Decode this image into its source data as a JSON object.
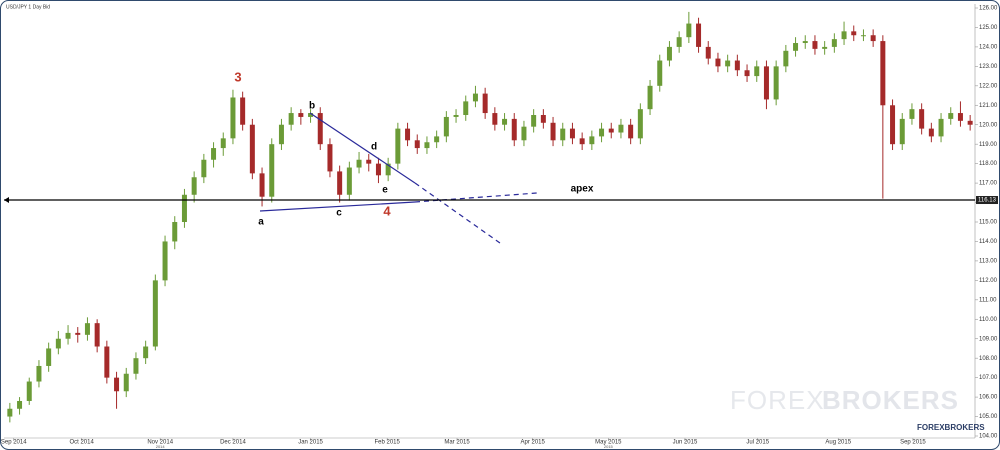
{
  "chart_data": {
    "type": "candlestick",
    "title": "USD/JPY  1 Day Bid",
    "up_color": "#6b9b37",
    "down_color": "#a52a2a",
    "ylim": [
      104,
      126
    ],
    "yticks": [
      {
        "value": 104,
        "label": "104.00"
      },
      {
        "value": 105,
        "label": "105.00"
      },
      {
        "value": 106,
        "label": "106.00"
      },
      {
        "value": 107,
        "label": "107.00"
      },
      {
        "value": 108,
        "label": "108.00"
      },
      {
        "value": 109,
        "label": "109.00"
      },
      {
        "value": 110,
        "label": "110.00"
      },
      {
        "value": 111,
        "label": "111.00"
      },
      {
        "value": 112,
        "label": "112.00"
      },
      {
        "value": 113,
        "label": "113.00"
      },
      {
        "value": 114,
        "label": "114.00"
      },
      {
        "value": 115,
        "label": "115.00"
      },
      {
        "value": 116,
        "label": "116.00"
      },
      {
        "value": 117,
        "label": "117.00"
      },
      {
        "value": 118,
        "label": "118.00"
      },
      {
        "value": 119,
        "label": "119.00"
      },
      {
        "value": 120,
        "label": "120.00"
      },
      {
        "value": 121,
        "label": "121.00"
      },
      {
        "value": 122,
        "label": "122.00"
      },
      {
        "value": 123,
        "label": "123.00"
      },
      {
        "value": 124,
        "label": "124.00"
      },
      {
        "value": 125,
        "label": "125.00"
      },
      {
        "value": 126,
        "label": "126.00"
      }
    ],
    "xticks": [
      {
        "value": 0.4,
        "label": "Sep 2014"
      },
      {
        "value": 7.4,
        "label": "Oct 2014"
      },
      {
        "value": 15.5,
        "label": "Nov 2014"
      },
      {
        "value": 23.0,
        "label": "Dec 2014"
      },
      {
        "value": 31.0,
        "label": "Jan 2015"
      },
      {
        "value": 38.9,
        "label": "Feb 2015"
      },
      {
        "value": 46.1,
        "label": "Mar 2015"
      },
      {
        "value": 53.9,
        "label": "Apr 2015"
      },
      {
        "value": 61.7,
        "label": "May 2015"
      },
      {
        "value": 69.6,
        "label": "Jun 2015"
      },
      {
        "value": 77.1,
        "label": "Jul 2015"
      },
      {
        "value": 85.4,
        "label": "Aug 2015"
      },
      {
        "value": 93.1,
        "label": "Sep 2015"
      }
    ],
    "year_labels": [
      {
        "value": 15.5,
        "label": "2014"
      },
      {
        "value": 61.7,
        "label": "2015"
      }
    ],
    "price_line": 116.13,
    "annotations": [
      "3",
      "4",
      "a",
      "b",
      "c",
      "d",
      "e",
      "apex"
    ],
    "watermark": {
      "main_left": "FOREX",
      "main_right": "BROKERS",
      "small": "FOREXBROKERS"
    },
    "candles": [
      [
        105.0,
        105.7,
        104.7,
        105.4
      ],
      [
        105.4,
        106.0,
        105.1,
        105.8
      ],
      [
        105.8,
        107.0,
        105.6,
        106.8
      ],
      [
        106.8,
        107.9,
        106.5,
        107.6
      ],
      [
        107.6,
        108.8,
        107.3,
        108.5
      ],
      [
        108.5,
        109.4,
        108.2,
        109.0
      ],
      [
        109.0,
        109.7,
        108.7,
        109.3
      ],
      [
        109.3,
        109.6,
        108.8,
        109.2
      ],
      [
        109.2,
        110.1,
        108.9,
        109.8
      ],
      [
        109.8,
        110.0,
        108.3,
        108.6
      ],
      [
        108.6,
        108.9,
        106.7,
        107.0
      ],
      [
        107.0,
        107.3,
        105.4,
        106.3
      ],
      [
        106.3,
        107.5,
        106.0,
        107.2
      ],
      [
        107.2,
        108.3,
        106.9,
        108.0
      ],
      [
        108.0,
        108.9,
        107.7,
        108.6
      ],
      [
        108.6,
        112.3,
        108.4,
        112.0
      ],
      [
        112.0,
        114.3,
        111.7,
        114.0
      ],
      [
        114.0,
        115.3,
        113.6,
        115.0
      ],
      [
        115.0,
        116.7,
        114.7,
        116.4
      ],
      [
        116.4,
        117.6,
        116.0,
        117.3
      ],
      [
        117.3,
        118.5,
        117.0,
        118.2
      ],
      [
        118.2,
        119.1,
        117.8,
        118.8
      ],
      [
        118.8,
        119.6,
        118.4,
        119.3
      ],
      [
        119.3,
        121.8,
        119.0,
        121.4
      ],
      [
        121.4,
        121.7,
        119.7,
        120.0
      ],
      [
        120.0,
        120.3,
        117.2,
        117.5
      ],
      [
        117.5,
        117.8,
        115.8,
        116.3
      ],
      [
        116.3,
        119.3,
        116.0,
        119.0
      ],
      [
        119.0,
        120.3,
        118.7,
        120.0
      ],
      [
        120.0,
        120.9,
        119.7,
        120.6
      ],
      [
        120.6,
        120.8,
        120.0,
        120.4
      ],
      [
        120.4,
        120.8,
        120.1,
        120.6
      ],
      [
        120.6,
        120.9,
        118.7,
        119.0
      ],
      [
        119.0,
        119.3,
        117.3,
        117.6
      ],
      [
        117.6,
        117.9,
        116.0,
        116.4
      ],
      [
        116.4,
        118.1,
        116.1,
        117.8
      ],
      [
        117.8,
        118.6,
        117.5,
        118.2
      ],
      [
        118.2,
        118.5,
        117.6,
        118.0
      ],
      [
        118.0,
        118.3,
        117.0,
        117.4
      ],
      [
        117.4,
        118.3,
        117.1,
        118.0
      ],
      [
        118.0,
        120.1,
        117.7,
        119.8
      ],
      [
        119.8,
        120.1,
        118.9,
        119.2
      ],
      [
        119.2,
        119.5,
        118.5,
        118.8
      ],
      [
        118.8,
        119.4,
        118.5,
        119.1
      ],
      [
        119.1,
        119.7,
        118.8,
        119.4
      ],
      [
        119.4,
        120.7,
        119.1,
        120.4
      ],
      [
        120.4,
        120.8,
        120.1,
        120.5
      ],
      [
        120.5,
        121.5,
        120.2,
        121.2
      ],
      [
        121.2,
        122.0,
        120.9,
        121.6
      ],
      [
        121.6,
        121.9,
        120.3,
        120.6
      ],
      [
        120.6,
        120.9,
        119.7,
        120.0
      ],
      [
        120.0,
        120.6,
        119.7,
        120.3
      ],
      [
        120.3,
        120.6,
        118.9,
        119.2
      ],
      [
        119.2,
        120.2,
        118.9,
        119.9
      ],
      [
        119.9,
        120.8,
        119.6,
        120.5
      ],
      [
        120.5,
        120.8,
        119.8,
        120.1
      ],
      [
        120.1,
        120.4,
        118.9,
        119.2
      ],
      [
        119.2,
        120.1,
        118.9,
        119.8
      ],
      [
        119.8,
        120.1,
        119.0,
        119.3
      ],
      [
        119.3,
        119.6,
        118.7,
        119.0
      ],
      [
        119.0,
        119.7,
        118.7,
        119.4
      ],
      [
        119.4,
        120.1,
        119.1,
        119.8
      ],
      [
        119.8,
        120.1,
        119.3,
        119.6
      ],
      [
        119.6,
        120.3,
        119.3,
        120.0
      ],
      [
        120.0,
        120.3,
        119.0,
        119.3
      ],
      [
        119.3,
        121.1,
        119.0,
        120.8
      ],
      [
        120.8,
        122.3,
        120.5,
        122.0
      ],
      [
        122.0,
        123.6,
        121.7,
        123.3
      ],
      [
        123.3,
        124.3,
        123.0,
        124.0
      ],
      [
        124.0,
        124.8,
        123.7,
        124.5
      ],
      [
        124.5,
        125.8,
        124.2,
        125.2
      ],
      [
        125.2,
        125.5,
        123.7,
        124.0
      ],
      [
        124.0,
        124.3,
        123.1,
        123.4
      ],
      [
        123.4,
        123.7,
        122.7,
        123.0
      ],
      [
        123.0,
        123.6,
        122.7,
        123.3
      ],
      [
        123.3,
        123.6,
        122.5,
        122.8
      ],
      [
        122.8,
        123.1,
        122.2,
        122.5
      ],
      [
        122.5,
        123.3,
        122.2,
        123.0
      ],
      [
        123.0,
        123.3,
        120.8,
        121.3
      ],
      [
        121.3,
        123.3,
        121.0,
        123.0
      ],
      [
        123.0,
        124.1,
        122.7,
        123.8
      ],
      [
        123.8,
        124.5,
        123.5,
        124.2
      ],
      [
        124.2,
        124.6,
        123.9,
        124.3
      ],
      [
        124.3,
        124.6,
        123.6,
        123.9
      ],
      [
        123.9,
        124.3,
        123.6,
        124.0
      ],
      [
        124.0,
        124.7,
        123.7,
        124.4
      ],
      [
        124.4,
        125.3,
        124.1,
        124.8
      ],
      [
        124.8,
        125.1,
        124.3,
        124.6
      ],
      [
        124.6,
        124.9,
        124.3,
        124.6
      ],
      [
        124.6,
        124.9,
        124.0,
        124.3
      ],
      [
        124.3,
        124.6,
        116.2,
        121.0
      ],
      [
        121.0,
        121.3,
        118.7,
        119.0
      ],
      [
        119.0,
        120.6,
        118.7,
        120.3
      ],
      [
        120.3,
        121.1,
        120.0,
        120.8
      ],
      [
        120.8,
        121.1,
        119.5,
        119.8
      ],
      [
        119.8,
        120.1,
        119.1,
        119.4
      ],
      [
        119.4,
        120.6,
        119.1,
        120.3
      ],
      [
        120.3,
        120.9,
        120.0,
        120.6
      ],
      [
        120.6,
        121.2,
        119.9,
        120.2
      ],
      [
        120.2,
        120.5,
        119.7,
        120.0
      ]
    ]
  }
}
